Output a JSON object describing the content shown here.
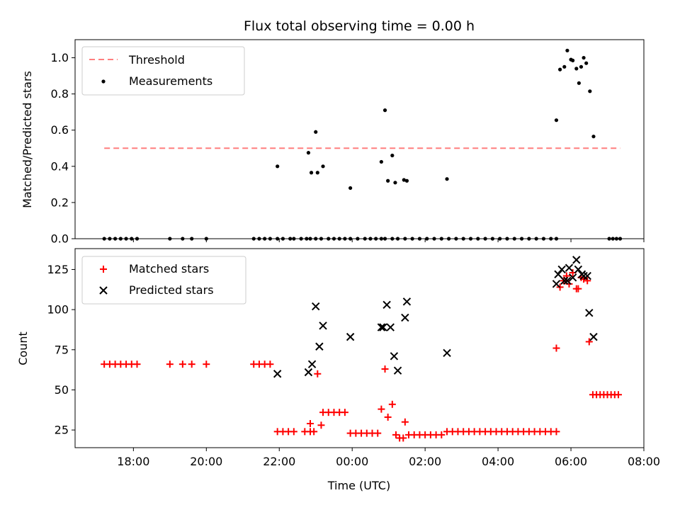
{
  "chart_data": {
    "title": "Flux total observing time = 0.00 h",
    "xlabel": "Time (UTC)",
    "x_ticks": [
      "18:00",
      "20:00",
      "22:00",
      "00:00",
      "02:00",
      "04:00",
      "06:00",
      "08:00"
    ],
    "x_tick_hours": [
      18,
      20,
      22,
      24,
      26,
      28,
      30,
      32
    ],
    "xlim": [
      16.4,
      32.0
    ],
    "colors": {
      "threshold": "#ff7f7f",
      "measurements": "#000000",
      "matched": "#ff0000",
      "predicted": "#000000"
    },
    "panels": [
      {
        "type": "scatter",
        "ylabel": "Matched/Predicted stars",
        "ylim": [
          0,
          1.1
        ],
        "y_ticks": [
          "0.0",
          "0.2",
          "0.4",
          "0.6",
          "0.8",
          "1.0"
        ],
        "y_tick_values": [
          0,
          0.2,
          0.4,
          0.6,
          0.8,
          1.0
        ],
        "legend_placement": "top-left",
        "threshold": {
          "name": "Threshold",
          "value": 0.5,
          "x_range": [
            17.2,
            31.35
          ]
        },
        "series": [
          {
            "name": "Measurements",
            "marker": "dot",
            "x": [
              17.2,
              17.35,
              17.5,
              17.65,
              17.8,
              17.95,
              18.1,
              19.0,
              19.35,
              19.6,
              20.0,
              21.3,
              21.45,
              21.6,
              21.75,
              21.95,
              22.1,
              22.3,
              22.4,
              22.6,
              22.75,
              22.85,
              23.0,
              23.15,
              23.35,
              23.5,
              23.65,
              23.8,
              23.95,
              24.15,
              24.35,
              24.5,
              24.65,
              24.8,
              24.9,
              25.1,
              25.25,
              25.45,
              25.65,
              25.85,
              26.05,
              26.25,
              26.45,
              26.65,
              26.85,
              27.05,
              27.25,
              27.45,
              27.65,
              27.85,
              28.05,
              28.25,
              28.45,
              28.65,
              28.85,
              29.05,
              29.25,
              29.45,
              29.6,
              31.05,
              31.15,
              31.25,
              31.35,
              21.95,
              22.8,
              22.88,
              23.0,
              23.05,
              23.2,
              23.95,
              24.8,
              24.9,
              24.98,
              25.1,
              25.18,
              25.42,
              25.5,
              26.6,
              29.6,
              29.7,
              29.82,
              29.9,
              30.0,
              30.05,
              30.15,
              30.22,
              30.28,
              30.35,
              30.42,
              30.52,
              30.62
            ],
            "y": [
              0,
              0,
              0,
              0,
              0,
              0,
              0,
              0,
              0,
              0,
              0,
              0,
              0,
              0,
              0,
              0,
              0,
              0,
              0,
              0,
              0,
              0,
              0,
              0,
              0,
              0,
              0,
              0,
              0,
              0,
              0,
              0,
              0,
              0,
              0,
              0,
              0,
              0,
              0,
              0,
              0,
              0,
              0,
              0,
              0,
              0,
              0,
              0,
              0,
              0,
              0,
              0,
              0,
              0,
              0,
              0,
              0,
              0,
              0,
              0,
              0,
              0,
              0,
              0.4,
              0.475,
              0.365,
              0.59,
              0.365,
              0.4,
              0.28,
              0.425,
              0.71,
              0.32,
              0.46,
              0.31,
              0.325,
              0.32,
              0.33,
              0.655,
              0.935,
              0.95,
              1.04,
              0.99,
              0.985,
              0.94,
              0.86,
              0.95,
              1.0,
              0.97,
              0.815,
              0.565
            ]
          }
        ]
      },
      {
        "type": "scatter",
        "ylabel": "Count",
        "ylim": [
          14,
          138
        ],
        "y_ticks": [
          "25",
          "50",
          "75",
          "100",
          "125"
        ],
        "y_tick_values": [
          25,
          50,
          75,
          100,
          125
        ],
        "legend_placement": "top-left",
        "series": [
          {
            "name": "Matched stars",
            "marker": "plus",
            "x": [
              17.2,
              17.35,
              17.5,
              17.65,
              17.8,
              17.95,
              18.1,
              19.0,
              19.35,
              19.6,
              20.0,
              21.3,
              21.45,
              21.6,
              21.75,
              21.95,
              22.1,
              22.25,
              22.4,
              22.7,
              22.85,
              22.95,
              23.05,
              22.85,
              23.15,
              23.2,
              23.35,
              23.5,
              23.65,
              23.8,
              23.95,
              24.1,
              24.25,
              24.4,
              24.55,
              24.7,
              24.8,
              24.9,
              24.98,
              25.1,
              25.2,
              25.3,
              25.4,
              25.45,
              25.55,
              25.7,
              25.85,
              26.0,
              26.15,
              26.3,
              26.45,
              26.6,
              26.75,
              26.9,
              27.05,
              27.2,
              27.35,
              27.5,
              27.65,
              27.8,
              27.95,
              28.1,
              28.25,
              28.4,
              28.55,
              28.7,
              28.85,
              29.0,
              29.15,
              29.3,
              29.45,
              29.6,
              29.6,
              29.7,
              29.8,
              29.88,
              29.95,
              30.05,
              30.15,
              30.2,
              30.28,
              30.35,
              30.45,
              30.5,
              30.6,
              30.7,
              30.8,
              30.9,
              31.0,
              31.1,
              31.2,
              31.3
            ],
            "y": [
              66,
              66,
              66,
              66,
              66,
              66,
              66,
              66,
              66,
              66,
              66,
              66,
              66,
              66,
              66,
              24,
              24,
              24,
              24,
              24,
              29,
              24,
              60,
              24,
              28,
              36,
              36,
              36,
              36,
              36,
              23,
              23,
              23,
              23,
              23,
              23,
              38,
              63,
              33,
              41,
              22,
              20,
              20,
              30,
              22,
              22,
              22,
              22,
              22,
              22,
              22,
              24,
              24,
              24,
              24,
              24,
              24,
              24,
              24,
              24,
              24,
              24,
              24,
              24,
              24,
              24,
              24,
              24,
              24,
              24,
              24,
              24,
              76,
              114,
              118,
              121,
              116,
              123,
              113,
              113,
              120,
              119,
              118,
              80,
              47,
              47,
              47,
              47,
              47,
              47,
              47,
              47
            ]
          },
          {
            "name": "Predicted stars",
            "marker": "x",
            "x": [
              21.95,
              22.8,
              22.9,
              23.0,
              23.1,
              23.2,
              23.95,
              24.8,
              24.85,
              24.95,
              25.05,
              25.15,
              25.25,
              25.45,
              25.5,
              26.6,
              29.6,
              29.65,
              29.75,
              29.82,
              29.9,
              29.95,
              30.05,
              30.15,
              30.2,
              30.3,
              30.35,
              30.45,
              30.5,
              30.62
            ],
            "y": [
              60,
              61,
              66,
              102,
              77,
              90,
              83,
              89,
              89,
              103,
              89,
              71,
              62,
              95,
              105,
              73,
              116,
              122,
              125,
              118,
              118,
              126,
              120,
              131,
              125,
              122,
              121,
              121,
              98,
              83
            ]
          }
        ]
      }
    ]
  }
}
